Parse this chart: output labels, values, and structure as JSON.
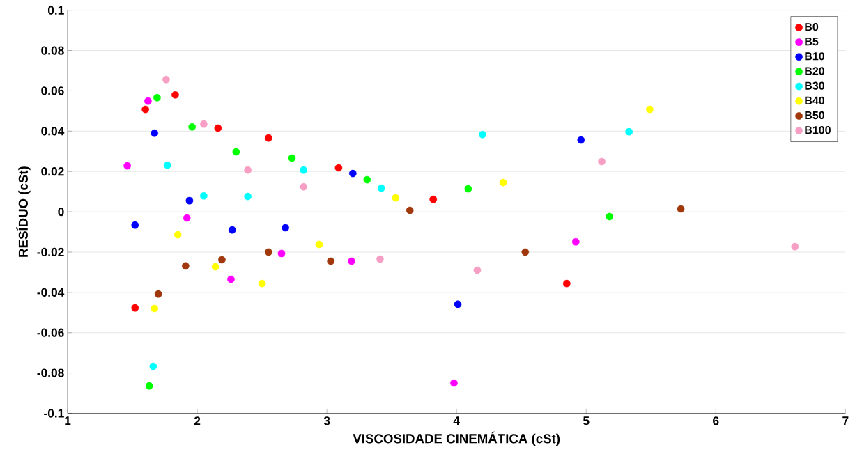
{
  "chart_data": {
    "type": "scatter",
    "xlabel": "VISCOSIDADE CINEMÁTICA (cSt)",
    "ylabel": "RESÍDUO (cSt)",
    "xlim": [
      1,
      7
    ],
    "ylim": [
      -0.1,
      0.1
    ],
    "xticks": [
      1,
      2,
      3,
      4,
      5,
      6,
      7
    ],
    "yticks": [
      -0.1,
      -0.08,
      -0.06,
      -0.04,
      -0.02,
      0,
      0.02,
      0.04,
      0.06,
      0.08,
      0.1
    ],
    "grid": "y",
    "legend": "top right",
    "marker": "circle",
    "series": [
      {
        "name": "B0",
        "color": "#ff0000",
        "x": [
          1.6,
          1.83,
          2.16,
          2.55,
          3.09,
          3.82,
          1.52,
          4.85
        ],
        "values": [
          0.0508,
          0.058,
          0.0415,
          0.0366,
          0.0218,
          0.0062,
          -0.0477,
          -0.0356
        ]
      },
      {
        "name": "B5",
        "color": "#ff00ff",
        "x": [
          1.46,
          1.62,
          1.92,
          2.26,
          2.65,
          3.19,
          3.98,
          4.92
        ],
        "values": [
          0.0228,
          0.0549,
          -0.0031,
          -0.0335,
          -0.0207,
          -0.0245,
          -0.085,
          -0.0149
        ]
      },
      {
        "name": "B10",
        "color": "#0000ff",
        "x": [
          1.52,
          1.67,
          1.94,
          2.27,
          2.68,
          3.2,
          4.01,
          4.96
        ],
        "values": [
          -0.0066,
          0.039,
          0.0055,
          -0.009,
          -0.0079,
          0.019,
          -0.0459,
          0.0356
        ]
      },
      {
        "name": "B20",
        "color": "#00ff00",
        "x": [
          1.69,
          1.96,
          2.3,
          2.73,
          3.31,
          4.09,
          5.18,
          1.63
        ],
        "values": [
          0.0566,
          0.0421,
          0.0297,
          0.0266,
          0.0159,
          0.0114,
          -0.0024,
          -0.0864
        ]
      },
      {
        "name": "B30",
        "color": "#00ffff",
        "x": [
          1.77,
          2.05,
          2.39,
          2.82,
          3.42,
          4.2,
          5.33,
          1.66
        ],
        "values": [
          0.0231,
          0.0079,
          0.0076,
          0.0207,
          0.0117,
          0.0383,
          0.0397,
          -0.0767
        ]
      },
      {
        "name": "B40",
        "color": "#ffff00",
        "x": [
          1.85,
          2.14,
          2.5,
          2.94,
          3.53,
          4.36,
          5.49,
          1.67
        ],
        "values": [
          -0.0114,
          -0.0273,
          -0.0356,
          -0.0162,
          0.0069,
          0.0145,
          0.0508,
          -0.048
        ]
      },
      {
        "name": "B50",
        "color": "#a0380c",
        "x": [
          1.7,
          1.91,
          2.19,
          2.55,
          3.03,
          3.64,
          4.53,
          5.73
        ],
        "values": [
          -0.0408,
          -0.0269,
          -0.0238,
          -0.02,
          -0.0245,
          0.0007,
          -0.02,
          0.0014
        ]
      },
      {
        "name": "B100",
        "color": "#f79ec4",
        "x": [
          1.76,
          2.05,
          2.39,
          2.82,
          3.41,
          4.16,
          5.12,
          6.61
        ],
        "values": [
          0.0656,
          0.0435,
          0.0207,
          0.0124,
          -0.0235,
          -0.029,
          0.0249,
          -0.0173
        ]
      }
    ]
  }
}
